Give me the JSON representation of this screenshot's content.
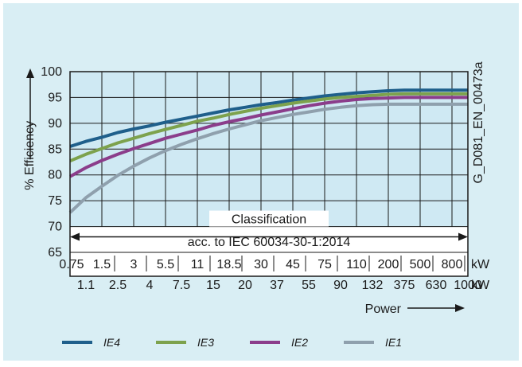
{
  "chart_data": {
    "type": "line",
    "ylabel": "% Efficiency",
    "xlabel": "Power",
    "ylim": [
      65,
      100
    ],
    "yticks": [
      65,
      70,
      75,
      80,
      85,
      90,
      95,
      100
    ],
    "x_top_labels": [
      "0.75",
      "1.5",
      "3",
      "5.5",
      "11",
      "18.5",
      "30",
      "45",
      "75",
      "110",
      "200",
      "500",
      "800"
    ],
    "x_bottom_labels": [
      "1.1",
      "2.5",
      "4",
      "7.5",
      "15",
      "20",
      "37",
      "55",
      "90",
      "132",
      "375",
      "630",
      "1000"
    ],
    "x_unit": "kW",
    "x": [
      "0.75",
      "1.1",
      "1.5",
      "2.5",
      "3",
      "4",
      "5.5",
      "7.5",
      "11",
      "15",
      "18.5",
      "20",
      "30",
      "37",
      "45",
      "55",
      "75",
      "90",
      "110",
      "132",
      "200",
      "375",
      "500",
      "630",
      "800",
      "1000"
    ],
    "series": [
      {
        "name": "IE4",
        "color": "#1f5f8b",
        "values": [
          85.5,
          86.5,
          87.3,
          88.2,
          88.9,
          89.5,
          90.2,
          90.8,
          91.4,
          92.0,
          92.6,
          93.1,
          93.6,
          94.0,
          94.5,
          94.9,
          95.3,
          95.6,
          95.9,
          96.1,
          96.3,
          96.4,
          96.4,
          96.4,
          96.4,
          96.4
        ]
      },
      {
        "name": "IE3",
        "color": "#7da24d",
        "values": [
          82.7,
          84.0,
          85.1,
          86.2,
          87.1,
          88.0,
          88.8,
          89.6,
          90.4,
          91.0,
          91.7,
          92.3,
          92.9,
          93.4,
          93.9,
          94.3,
          94.7,
          95.0,
          95.2,
          95.4,
          95.6,
          95.7,
          95.7,
          95.7,
          95.7,
          95.7
        ]
      },
      {
        "name": "IE2",
        "color": "#8b3d8b",
        "values": [
          79.7,
          81.4,
          82.8,
          84.0,
          85.1,
          86.1,
          87.1,
          87.9,
          88.7,
          89.6,
          90.3,
          90.9,
          91.6,
          92.2,
          92.8,
          93.4,
          93.9,
          94.3,
          94.6,
          94.8,
          94.9,
          95.0,
          95.0,
          95.0,
          95.0,
          95.0
        ]
      },
      {
        "name": "IE1",
        "color": "#8fa0ad",
        "values": [
          72.7,
          75.6,
          77.8,
          79.9,
          81.7,
          83.3,
          84.7,
          85.9,
          87.0,
          88.0,
          88.9,
          89.7,
          90.5,
          91.1,
          91.7,
          92.2,
          92.7,
          93.1,
          93.4,
          93.6,
          93.7,
          93.7,
          93.7,
          93.7,
          93.7,
          93.7
        ]
      }
    ],
    "annotations": {
      "classification": "Classification",
      "standard": "acc. to IEC 60034-30-1:2014",
      "figure_id": "G_D081_EN_00473a"
    },
    "grid": true,
    "legend_position": "bottom"
  }
}
